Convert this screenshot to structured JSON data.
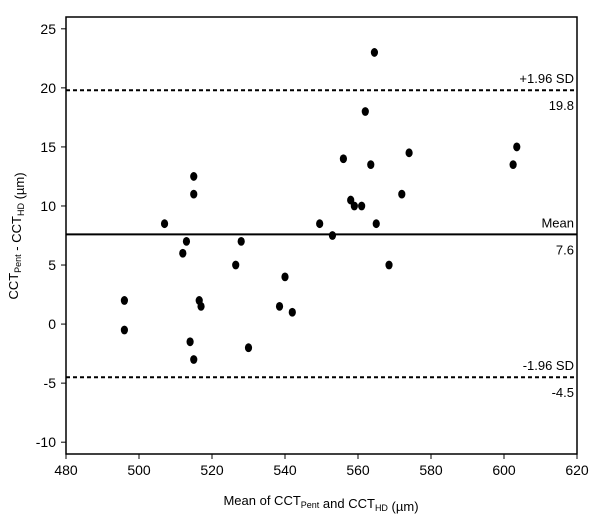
{
  "chart_data": {
    "type": "scatter",
    "title": "",
    "xlabel": {
      "parts": [
        {
          "text": "Mean of CCT",
          "sub": false
        },
        {
          "text": "Pent",
          "sub": true
        },
        {
          "text": " and CCT",
          "sub": false
        },
        {
          "text": "HD",
          "sub": true
        },
        {
          "text": " (µm)",
          "sub": false
        }
      ]
    },
    "ylabel": {
      "parts": [
        {
          "text": "CCT",
          "sub": false
        },
        {
          "text": "Pent",
          "sub": true
        },
        {
          "text": " - CCT",
          "sub": false
        },
        {
          "text": "HD",
          "sub": true
        },
        {
          "text": " (µm)",
          "sub": false
        }
      ]
    },
    "xlim": [
      480,
      620
    ],
    "ylim": [
      -11,
      26
    ],
    "x_ticks": [
      480,
      500,
      520,
      540,
      560,
      580,
      600,
      620
    ],
    "y_ticks": [
      -10,
      -5,
      0,
      5,
      10,
      15,
      20,
      25
    ],
    "grid": false,
    "reference_lines": [
      {
        "name": "upper-loa",
        "label": "+1.96 SD",
        "value_label": "19.8",
        "y": 19.8,
        "style": "dashed"
      },
      {
        "name": "mean",
        "label": "Mean",
        "value_label": "7.6",
        "y": 7.6,
        "style": "solid"
      },
      {
        "name": "lower-loa",
        "label": "-1.96 SD",
        "value_label": "-4.5",
        "y": -4.5,
        "style": "dashed"
      }
    ],
    "point_color": "#000000",
    "points": [
      {
        "x": 496,
        "y": 2
      },
      {
        "x": 496,
        "y": -0.5
      },
      {
        "x": 507,
        "y": 8.5
      },
      {
        "x": 512,
        "y": 6
      },
      {
        "x": 513,
        "y": 7
      },
      {
        "x": 514,
        "y": -1.5
      },
      {
        "x": 515,
        "y": 12.5
      },
      {
        "x": 515,
        "y": 11
      },
      {
        "x": 515,
        "y": -3
      },
      {
        "x": 516.5,
        "y": 2
      },
      {
        "x": 517,
        "y": 1.5
      },
      {
        "x": 526.5,
        "y": 5
      },
      {
        "x": 528,
        "y": 7
      },
      {
        "x": 530,
        "y": -2
      },
      {
        "x": 538.5,
        "y": 1.5
      },
      {
        "x": 540,
        "y": 4
      },
      {
        "x": 542,
        "y": 1
      },
      {
        "x": 549.5,
        "y": 8.5
      },
      {
        "x": 553,
        "y": 7.5
      },
      {
        "x": 556,
        "y": 14
      },
      {
        "x": 558,
        "y": 10.5
      },
      {
        "x": 559,
        "y": 10
      },
      {
        "x": 561,
        "y": 10
      },
      {
        "x": 562,
        "y": 18
      },
      {
        "x": 563.5,
        "y": 13.5
      },
      {
        "x": 564.5,
        "y": 23
      },
      {
        "x": 565,
        "y": 8.5
      },
      {
        "x": 568.5,
        "y": 5
      },
      {
        "x": 572,
        "y": 11
      },
      {
        "x": 574,
        "y": 14.5
      },
      {
        "x": 602.5,
        "y": 13.5
      },
      {
        "x": 603.5,
        "y": 15
      }
    ]
  }
}
